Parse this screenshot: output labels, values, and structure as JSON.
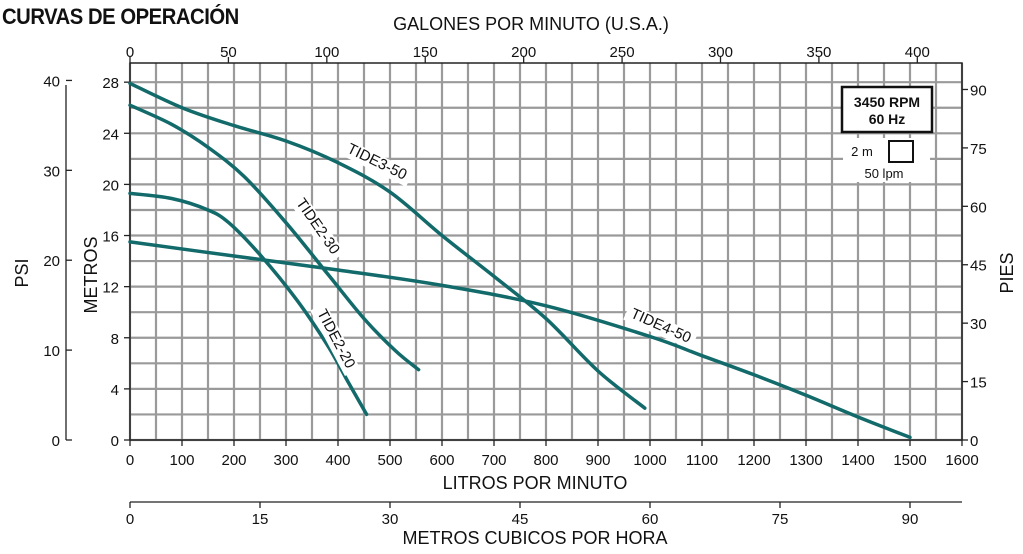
{
  "title": "CURVAS DE OPERACIÓN",
  "speed_box": {
    "line1": "3450 RPM",
    "line2": "60 Hz"
  },
  "scale_box": {
    "vertical": "2 m",
    "horizontal": "50 lpm"
  },
  "chart_data": {
    "type": "line",
    "grid": true,
    "curve_color": "#136a6a",
    "grid_color": "#9a9a9a",
    "axes": {
      "x_lpm": {
        "label": "LITROS POR MINUTO",
        "range": [
          0,
          1600
        ],
        "ticks": [
          "0",
          "100",
          "200",
          "300",
          "400",
          "500",
          "600",
          "700",
          "800",
          "900",
          "1000",
          "1100",
          "1200",
          "1300",
          "1400",
          "1500",
          "1600"
        ]
      },
      "x_gpm": {
        "label": "GALONES POR MINUTO (U.S.A.)",
        "range": [
          0,
          422.7
        ],
        "ticks": [
          "0",
          "50",
          "100",
          "150",
          "200",
          "250",
          "300",
          "350",
          "400"
        ]
      },
      "x_m3h": {
        "label": "METROS CUBICOS POR HORA",
        "range": [
          0,
          96
        ],
        "ticks": [
          "0",
          "15",
          "30",
          "45",
          "60",
          "75",
          "90"
        ]
      },
      "y_m": {
        "label": "METROS",
        "range": [
          0,
          29.5
        ],
        "ticks": [
          "0",
          "4",
          "8",
          "12",
          "16",
          "20",
          "24",
          "28"
        ]
      },
      "y_psi": {
        "label": "PSI",
        "range": [
          0,
          41.94
        ],
        "ticks": [
          "0",
          "10",
          "20",
          "30",
          "40"
        ]
      },
      "y_ft": {
        "label": "PIES",
        "range": [
          0,
          96.8
        ],
        "ticks": [
          "0",
          "15",
          "30",
          "45",
          "60",
          "75",
          "90"
        ]
      }
    },
    "series": [
      {
        "name": "TIDE2-20",
        "x": [
          0,
          80,
          150,
          190,
          250,
          320,
          380,
          420,
          455
        ],
        "y": [
          19.3,
          18.9,
          18.0,
          17.0,
          14.5,
          11.0,
          7.4,
          4.5,
          2.0
        ]
      },
      {
        "name": "TIDE2-30",
        "x": [
          0,
          80,
          150,
          220,
          300,
          380,
          450,
          510,
          555
        ],
        "y": [
          26.2,
          24.7,
          22.9,
          20.6,
          17.0,
          13.0,
          9.5,
          7.0,
          5.5
        ]
      },
      {
        "name": "TIDE3-50",
        "x": [
          0,
          100,
          200,
          300,
          400,
          500,
          600,
          700,
          800,
          900,
          990
        ],
        "y": [
          27.9,
          26.0,
          24.6,
          23.4,
          21.7,
          19.4,
          16.0,
          12.8,
          9.5,
          5.4,
          2.5
        ]
      },
      {
        "name": "TIDE4-50",
        "x": [
          0,
          200,
          400,
          600,
          800,
          1000,
          1100,
          1200,
          1300,
          1400,
          1500
        ],
        "y": [
          15.5,
          14.4,
          13.3,
          12.1,
          10.5,
          8.1,
          6.6,
          5.1,
          3.5,
          1.8,
          0.2
        ]
      }
    ]
  }
}
